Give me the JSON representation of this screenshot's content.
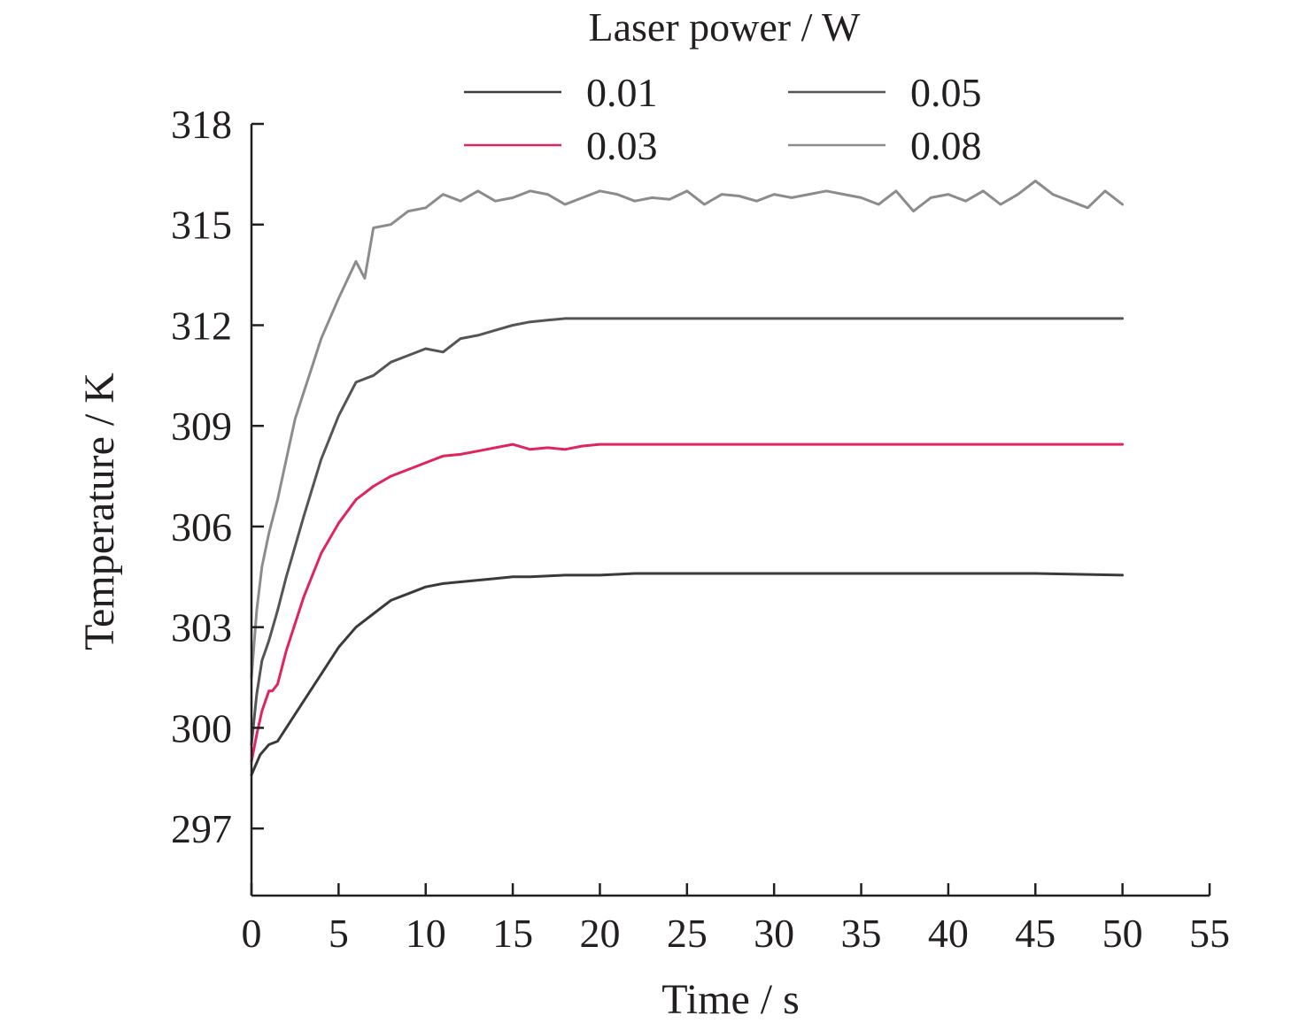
{
  "chart_data": {
    "type": "line",
    "xlabel": "Time / s",
    "ylabel": "Temperature / K",
    "xlim": [
      0,
      55
    ],
    "ylim": [
      295,
      318
    ],
    "x_ticks": [
      0,
      5,
      10,
      15,
      20,
      25,
      30,
      35,
      40,
      45,
      50,
      55
    ],
    "y_ticks": [
      297,
      300,
      303,
      306,
      309,
      312,
      315,
      318
    ],
    "legend": {
      "title": "Laser power / W",
      "placement": "top",
      "columns": 2
    },
    "grid": false,
    "series": [
      {
        "name": "0.01",
        "color": "#3a3a3a",
        "x": [
          0,
          0.5,
          1,
          1.5,
          2,
          3,
          4,
          5,
          6,
          7,
          8,
          9,
          10,
          11,
          12,
          13,
          14,
          15,
          16,
          18,
          20,
          22,
          25,
          30,
          35,
          40,
          45,
          50
        ],
        "y": [
          298.6,
          299.2,
          299.5,
          299.6,
          300.0,
          300.8,
          301.6,
          302.4,
          303.0,
          303.4,
          303.8,
          304.0,
          304.2,
          304.3,
          304.35,
          304.4,
          304.45,
          304.5,
          304.5,
          304.55,
          304.55,
          304.6,
          304.6,
          304.6,
          304.6,
          304.6,
          304.6,
          304.55
        ]
      },
      {
        "name": "0.03",
        "color": "#e0245e",
        "x": [
          0,
          0.3,
          0.6,
          1,
          1.2,
          1.5,
          2,
          3,
          4,
          5,
          6,
          7,
          8,
          9,
          10,
          11,
          12,
          13,
          14,
          15,
          16,
          17,
          18,
          19,
          20,
          22,
          25,
          30,
          35,
          40,
          45,
          50
        ],
        "y": [
          299.0,
          299.8,
          300.5,
          301.1,
          301.1,
          301.3,
          302.3,
          303.9,
          305.2,
          306.1,
          306.8,
          307.2,
          307.5,
          307.7,
          307.9,
          308.1,
          308.15,
          308.25,
          308.35,
          308.45,
          308.3,
          308.35,
          308.3,
          308.4,
          308.45,
          308.45,
          308.45,
          308.45,
          308.45,
          308.45,
          308.45,
          308.45
        ]
      },
      {
        "name": "0.05",
        "color": "#555555",
        "x": [
          0,
          0.3,
          0.6,
          1,
          1.5,
          2,
          3,
          4,
          5,
          6,
          7,
          8,
          9,
          10,
          11,
          12,
          13,
          14,
          15,
          16,
          17,
          18,
          20,
          22,
          25,
          30,
          35,
          40,
          45,
          50
        ],
        "y": [
          299.5,
          301.0,
          302.0,
          302.6,
          303.5,
          304.5,
          306.3,
          308.0,
          309.3,
          310.3,
          310.5,
          310.9,
          311.1,
          311.3,
          311.2,
          311.6,
          311.7,
          311.85,
          312.0,
          312.1,
          312.15,
          312.2,
          312.2,
          312.2,
          312.2,
          312.2,
          312.2,
          312.2,
          312.2,
          312.2
        ]
      },
      {
        "name": "0.08",
        "color": "#8c8c8c",
        "x": [
          0,
          0.3,
          0.6,
          1,
          1.5,
          2,
          2.5,
          3,
          3.5,
          4,
          5,
          6,
          6.5,
          7,
          8,
          9,
          10,
          11,
          12,
          13,
          14,
          15,
          16,
          17,
          18,
          19,
          20,
          21,
          22,
          23,
          24,
          25,
          26,
          27,
          28,
          29,
          30,
          31,
          32,
          33,
          34,
          35,
          36,
          37,
          38,
          39,
          40,
          41,
          42,
          43,
          44,
          45,
          46,
          47,
          48,
          49,
          50
        ],
        "y": [
          301.5,
          303.5,
          304.8,
          305.8,
          306.8,
          308.0,
          309.2,
          310.0,
          310.8,
          311.6,
          312.8,
          313.9,
          313.4,
          314.9,
          315.0,
          315.4,
          315.5,
          315.9,
          315.7,
          316.0,
          315.7,
          315.8,
          316.0,
          315.9,
          315.6,
          315.8,
          316.0,
          315.9,
          315.7,
          315.8,
          315.75,
          316.0,
          315.6,
          315.9,
          315.85,
          315.7,
          315.9,
          315.8,
          315.9,
          316.0,
          315.9,
          315.8,
          315.6,
          316.0,
          315.4,
          315.8,
          315.9,
          315.7,
          316.0,
          315.6,
          315.9,
          316.3,
          315.9,
          315.7,
          315.5,
          316.0,
          315.6
        ]
      }
    ]
  }
}
